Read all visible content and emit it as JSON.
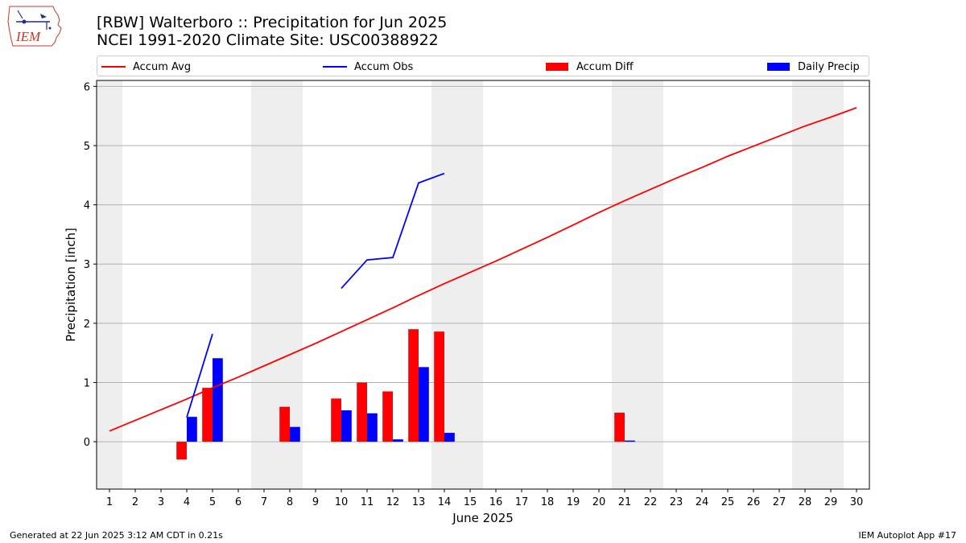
{
  "header": {
    "title_line1": "[RBW] Walterboro :: Precipitation for Jun 2025",
    "title_line2": "NCEI 1991-2020 Climate Site: USC00388922"
  },
  "logo": {
    "text": "IEM",
    "icon": "iem-logo-icon"
  },
  "colors": {
    "avg": "#ff0000",
    "obs": "#0000ff",
    "diff": "#ff0000",
    "daily": "#0000ff",
    "weekend": "#eeeeee",
    "grid": "#b0b0b0"
  },
  "legend": [
    {
      "label": "Accum Avg",
      "kind": "line",
      "color": "#ff0000"
    },
    {
      "label": "Accum Obs",
      "kind": "line",
      "color": "#0000ff"
    },
    {
      "label": "Accum Diff",
      "kind": "box",
      "color": "#ff0000"
    },
    {
      "label": "Daily Precip",
      "kind": "box",
      "color": "#0000ff"
    }
  ],
  "chart_data": {
    "type": "bar",
    "xlabel": "June 2025",
    "ylabel": "Precipitation [inch]",
    "ylim": [
      -0.8,
      6.1
    ],
    "yticks": [
      0,
      1,
      2,
      3,
      4,
      5,
      6
    ],
    "grid": true,
    "legend_position": "top",
    "x": [
      1,
      2,
      3,
      4,
      5,
      6,
      7,
      8,
      9,
      10,
      11,
      12,
      13,
      14,
      15,
      16,
      17,
      18,
      19,
      20,
      21,
      22,
      23,
      24,
      25,
      26,
      27,
      28,
      29,
      30
    ],
    "weekend_days": [
      1,
      7,
      8,
      14,
      15,
      21,
      22,
      28,
      29
    ],
    "series": [
      {
        "name": "Accum Avg",
        "kind": "line",
        "values": [
          0.18,
          0.36,
          0.54,
          0.72,
          0.91,
          1.09,
          1.28,
          1.47,
          1.66,
          1.86,
          2.06,
          2.26,
          2.47,
          2.67,
          2.86,
          3.05,
          3.25,
          3.45,
          3.66,
          3.87,
          4.07,
          4.26,
          4.45,
          4.63,
          4.82,
          4.99,
          5.16,
          5.33,
          5.48,
          5.64
        ]
      },
      {
        "name": "Accum Obs",
        "kind": "line",
        "values": [
          null,
          null,
          null,
          0.41,
          1.82,
          null,
          null,
          null,
          null,
          2.59,
          3.07,
          3.11,
          4.37,
          4.53,
          null,
          null,
          null,
          null,
          null,
          null,
          null,
          null,
          null,
          null,
          null,
          null,
          null,
          null,
          null,
          null
        ]
      },
      {
        "name": "Accum Diff",
        "kind": "bar",
        "values": [
          null,
          null,
          null,
          -0.3,
          0.91,
          null,
          null,
          0.59,
          null,
          0.73,
          1.0,
          0.85,
          1.9,
          1.86,
          null,
          null,
          null,
          null,
          null,
          null,
          0.49,
          null,
          null,
          null,
          null,
          null,
          null,
          null,
          null,
          null
        ]
      },
      {
        "name": "Daily Precip",
        "kind": "bar",
        "values": [
          null,
          null,
          null,
          0.42,
          1.41,
          null,
          null,
          0.25,
          null,
          0.53,
          0.48,
          0.04,
          1.26,
          0.15,
          null,
          null,
          null,
          null,
          null,
          null,
          0.02,
          null,
          null,
          null,
          null,
          null,
          null,
          null,
          null,
          null
        ]
      }
    ]
  },
  "footer": {
    "left": "Generated at 22 Jun 2025 3:12 AM CDT in 0.21s",
    "right": "IEM Autoplot App #17"
  }
}
